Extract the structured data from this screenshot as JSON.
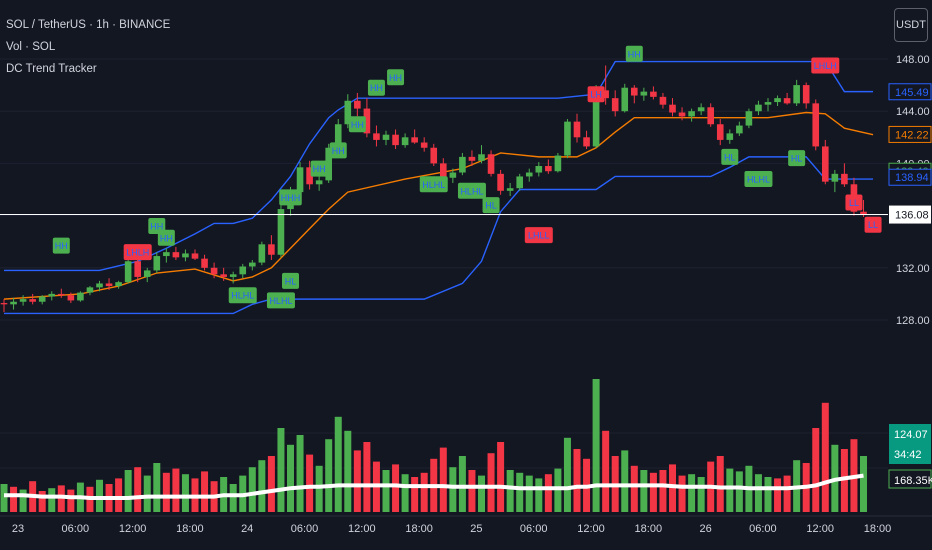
{
  "header": {
    "symbol_line": "SOL / TetherUS · 1h · BINANCE",
    "volume_line": "Vol · SOL",
    "indicator_line": "DC Trend Tracker",
    "currency_button": "USDT"
  },
  "colors": {
    "background": "#131722",
    "bull": "#4caf50",
    "bear": "#f23645",
    "upper_channel": "#2962ff",
    "lower_channel": "#2962ff",
    "middle_line": "#f57c00",
    "volume_ma": "#ffffff",
    "text": "#d1d4dc"
  },
  "chart_data": {
    "type": "candlestick",
    "symbol": "SOL / TetherUS",
    "interval": "1h",
    "exchange": "BINANCE",
    "price_axis_ticks": [
      148.0,
      144.0,
      140.0,
      136.0,
      132.0,
      128.0
    ],
    "time_axis_labels": [
      "23",
      "06:00",
      "12:00",
      "18:00",
      "24",
      "06:00",
      "12:00",
      "18:00",
      "25",
      "06:00",
      "12:00",
      "18:00",
      "26",
      "06:00",
      "12:00",
      "18:00"
    ],
    "price_labels": [
      {
        "name": "upper",
        "value": "145.49",
        "color": "#2962ff"
      },
      {
        "name": "middle",
        "value": "142.22",
        "color": "#f57c00"
      },
      {
        "name": "ma",
        "value": "139.40",
        "color": "#4caf50"
      },
      {
        "name": "lower",
        "value": "138.94",
        "color": "#2962ff"
      },
      {
        "name": "current",
        "value": "136.08",
        "color": "#ffffff"
      }
    ],
    "volume_labels": [
      {
        "value": "124.07",
        "color": "#089981"
      },
      {
        "value": "34:42",
        "color": "#089981"
      },
      {
        "value": "168.35K",
        "color": "#ffffff"
      }
    ],
    "current_price": 136.08,
    "channel_upper": [
      [
        0,
        131.8
      ],
      [
        10,
        131.8
      ],
      [
        14,
        132.5
      ],
      [
        17,
        133.5
      ],
      [
        20,
        134.6
      ],
      [
        22,
        135.4
      ],
      [
        24,
        135.4
      ],
      [
        26,
        135.8
      ],
      [
        28,
        137.2
      ],
      [
        30,
        139.0
      ],
      [
        32,
        141.5
      ],
      [
        34,
        143.5
      ],
      [
        35,
        144.1
      ],
      [
        37,
        145.0
      ],
      [
        44,
        145.0
      ],
      [
        50,
        145.0
      ],
      [
        58,
        145.0
      ],
      [
        62,
        145.3
      ],
      [
        64,
        147.8
      ],
      [
        86,
        147.8
      ],
      [
        88,
        145.5
      ],
      [
        91,
        145.5
      ]
    ],
    "channel_middle": [
      [
        0,
        129.6
      ],
      [
        8,
        130.0
      ],
      [
        12,
        130.6
      ],
      [
        16,
        131.6
      ],
      [
        20,
        131.9
      ],
      [
        24,
        131.0
      ],
      [
        26,
        131.3
      ],
      [
        28,
        132.0
      ],
      [
        30,
        133.5
      ],
      [
        32,
        135.0
      ],
      [
        34,
        136.5
      ],
      [
        36,
        137.8
      ],
      [
        42,
        138.8
      ],
      [
        48,
        139.6
      ],
      [
        52,
        140.8
      ],
      [
        56,
        140.5
      ],
      [
        60,
        140.5
      ],
      [
        62,
        141.2
      ],
      [
        64,
        142.4
      ],
      [
        66,
        143.5
      ],
      [
        80,
        143.5
      ],
      [
        84,
        143.9
      ],
      [
        86,
        143.8
      ],
      [
        88,
        142.7
      ],
      [
        91,
        142.2
      ]
    ],
    "channel_lower": [
      [
        0,
        128.5
      ],
      [
        14,
        128.5
      ],
      [
        24,
        128.5
      ],
      [
        26,
        129.2
      ],
      [
        28,
        129.6
      ],
      [
        30,
        129.6
      ],
      [
        44,
        129.6
      ],
      [
        48,
        130.8
      ],
      [
        50,
        132.5
      ],
      [
        52,
        136.3
      ],
      [
        54,
        138.0
      ],
      [
        56,
        138.0
      ],
      [
        62,
        138.0
      ],
      [
        64,
        139.0
      ],
      [
        70,
        139.0
      ],
      [
        74,
        139.0
      ],
      [
        76,
        139.7
      ],
      [
        78,
        140.5
      ],
      [
        84,
        140.5
      ],
      [
        86,
        138.8
      ],
      [
        91,
        138.8
      ]
    ],
    "candles": [
      [
        129.3,
        129.6,
        128.6,
        129.2
      ],
      [
        129.2,
        129.7,
        128.8,
        129.4
      ],
      [
        129.4,
        129.9,
        129.1,
        129.6
      ],
      [
        129.6,
        130.0,
        129.2,
        129.4
      ],
      [
        129.4,
        129.9,
        129.2,
        129.8
      ],
      [
        129.8,
        130.2,
        129.5,
        130.0
      ],
      [
        130.0,
        130.4,
        129.7,
        129.9
      ],
      [
        129.9,
        130.1,
        129.3,
        129.5
      ],
      [
        129.5,
        130.2,
        129.4,
        130.1
      ],
      [
        130.1,
        130.6,
        129.9,
        130.5
      ],
      [
        130.5,
        131.0,
        130.2,
        130.8
      ],
      [
        130.8,
        131.2,
        130.3,
        130.6
      ],
      [
        130.6,
        131.0,
        130.4,
        130.9
      ],
      [
        130.9,
        132.7,
        130.8,
        132.5
      ],
      [
        132.5,
        133.2,
        130.9,
        131.3
      ],
      [
        131.3,
        132.0,
        130.9,
        131.8
      ],
      [
        131.8,
        133.2,
        131.6,
        132.9
      ],
      [
        132.9,
        133.5,
        132.4,
        133.2
      ],
      [
        133.2,
        133.6,
        132.6,
        132.8
      ],
      [
        132.8,
        133.4,
        132.5,
        133.1
      ],
      [
        133.1,
        133.4,
        132.6,
        132.7
      ],
      [
        132.7,
        133.0,
        131.8,
        132.0
      ],
      [
        132.0,
        132.4,
        131.2,
        131.5
      ],
      [
        131.5,
        132.0,
        131.0,
        131.3
      ],
      [
        131.3,
        131.7,
        130.8,
        131.5
      ],
      [
        131.5,
        132.3,
        131.2,
        132.1
      ],
      [
        132.1,
        132.6,
        131.8,
        132.4
      ],
      [
        132.4,
        134.0,
        132.2,
        133.8
      ],
      [
        133.8,
        134.5,
        132.6,
        133.0
      ],
      [
        133.0,
        136.8,
        132.8,
        136.5
      ],
      [
        136.5,
        138.2,
        136.0,
        137.8
      ],
      [
        137.8,
        140.1,
        137.5,
        139.7
      ],
      [
        139.7,
        140.2,
        138.0,
        138.4
      ],
      [
        138.4,
        139.0,
        137.9,
        138.7
      ],
      [
        138.7,
        141.5,
        138.5,
        141.2
      ],
      [
        141.2,
        143.4,
        141.0,
        143.0
      ],
      [
        143.0,
        145.3,
        142.7,
        144.8
      ],
      [
        144.8,
        145.4,
        143.6,
        144.2
      ],
      [
        144.2,
        145.0,
        142.0,
        142.3
      ],
      [
        142.3,
        142.9,
        141.3,
        141.8
      ],
      [
        141.8,
        142.5,
        141.4,
        142.2
      ],
      [
        142.2,
        142.6,
        141.1,
        141.4
      ],
      [
        141.4,
        142.3,
        141.2,
        142.0
      ],
      [
        142.0,
        142.6,
        141.5,
        141.6
      ],
      [
        141.6,
        142.0,
        140.9,
        141.2
      ],
      [
        141.2,
        141.5,
        139.8,
        140.0
      ],
      [
        140.0,
        140.4,
        138.6,
        138.9
      ],
      [
        138.9,
        139.6,
        138.5,
        139.3
      ],
      [
        139.3,
        140.8,
        139.1,
        140.5
      ],
      [
        140.5,
        141.0,
        139.8,
        140.2
      ],
      [
        140.2,
        141.4,
        140.0,
        140.7
      ],
      [
        140.7,
        141.0,
        139.0,
        139.2
      ],
      [
        139.2,
        139.5,
        137.6,
        137.9
      ],
      [
        137.9,
        138.5,
        137.5,
        138.1
      ],
      [
        138.1,
        139.2,
        137.9,
        139.0
      ],
      [
        139.0,
        139.6,
        138.6,
        139.3
      ],
      [
        139.3,
        140.1,
        139.0,
        139.8
      ],
      [
        139.8,
        140.3,
        139.2,
        139.4
      ],
      [
        139.4,
        140.8,
        139.3,
        140.6
      ],
      [
        140.6,
        143.4,
        140.4,
        143.2
      ],
      [
        143.2,
        143.8,
        141.6,
        142.0
      ],
      [
        142.0,
        142.5,
        141.1,
        141.3
      ],
      [
        141.3,
        146.0,
        141.2,
        145.6
      ],
      [
        145.6,
        147.5,
        144.5,
        145.0
      ],
      [
        145.0,
        145.6,
        143.6,
        144.0
      ],
      [
        144.0,
        146.1,
        143.9,
        145.8
      ],
      [
        145.8,
        146.0,
        144.6,
        145.2
      ],
      [
        145.2,
        145.8,
        144.8,
        145.5
      ],
      [
        145.5,
        145.9,
        144.9,
        145.1
      ],
      [
        145.1,
        145.4,
        144.2,
        144.5
      ],
      [
        144.5,
        145.0,
        143.6,
        143.9
      ],
      [
        143.9,
        144.3,
        143.3,
        143.6
      ],
      [
        143.6,
        144.2,
        143.2,
        144.0
      ],
      [
        144.0,
        144.6,
        143.7,
        144.3
      ],
      [
        144.3,
        144.6,
        142.8,
        143.0
      ],
      [
        143.0,
        143.4,
        141.4,
        141.8
      ],
      [
        141.8,
        142.6,
        141.5,
        142.3
      ],
      [
        142.3,
        143.2,
        142.1,
        142.9
      ],
      [
        142.9,
        144.2,
        142.7,
        144.0
      ],
      [
        144.0,
        144.8,
        143.7,
        144.5
      ],
      [
        144.5,
        145.0,
        144.0,
        144.7
      ],
      [
        144.7,
        145.2,
        144.4,
        145.0
      ],
      [
        145.0,
        145.4,
        144.5,
        144.6
      ],
      [
        144.6,
        146.4,
        144.4,
        146.0
      ],
      [
        146.0,
        146.2,
        144.2,
        144.6
      ],
      [
        144.6,
        144.9,
        141.0,
        141.3
      ],
      [
        141.3,
        141.8,
        138.4,
        138.6
      ],
      [
        138.6,
        139.5,
        137.8,
        139.2
      ],
      [
        139.2,
        140.0,
        138.2,
        138.4
      ],
      [
        138.4,
        138.9,
        136.0,
        136.3
      ],
      [
        136.3,
        137.2,
        135.9,
        136.1
      ]
    ],
    "volumes": [
      [
        0.2,
        0
      ],
      [
        0.18,
        1
      ],
      [
        0.16,
        0
      ],
      [
        0.22,
        1
      ],
      [
        0.15,
        1
      ],
      [
        0.17,
        0
      ],
      [
        0.19,
        1
      ],
      [
        0.16,
        1
      ],
      [
        0.21,
        0
      ],
      [
        0.18,
        1
      ],
      [
        0.23,
        0
      ],
      [
        0.2,
        1
      ],
      [
        0.24,
        1
      ],
      [
        0.3,
        0
      ],
      [
        0.32,
        1
      ],
      [
        0.26,
        0
      ],
      [
        0.35,
        0
      ],
      [
        0.28,
        1
      ],
      [
        0.31,
        1
      ],
      [
        0.27,
        0
      ],
      [
        0.24,
        1
      ],
      [
        0.29,
        1
      ],
      [
        0.22,
        1
      ],
      [
        0.25,
        0
      ],
      [
        0.2,
        0
      ],
      [
        0.26,
        0
      ],
      [
        0.32,
        0
      ],
      [
        0.37,
        0
      ],
      [
        0.4,
        1
      ],
      [
        0.6,
        0
      ],
      [
        0.48,
        0
      ],
      [
        0.55,
        0
      ],
      [
        0.41,
        1
      ],
      [
        0.33,
        0
      ],
      [
        0.52,
        0
      ],
      [
        0.68,
        0
      ],
      [
        0.58,
        0
      ],
      [
        0.44,
        1
      ],
      [
        0.5,
        1
      ],
      [
        0.36,
        1
      ],
      [
        0.3,
        0
      ],
      [
        0.34,
        1
      ],
      [
        0.27,
        0
      ],
      [
        0.25,
        1
      ],
      [
        0.28,
        1
      ],
      [
        0.38,
        1
      ],
      [
        0.46,
        1
      ],
      [
        0.32,
        0
      ],
      [
        0.4,
        0
      ],
      [
        0.3,
        1
      ],
      [
        0.26,
        0
      ],
      [
        0.42,
        1
      ],
      [
        0.5,
        1
      ],
      [
        0.3,
        0
      ],
      [
        0.28,
        0
      ],
      [
        0.26,
        0
      ],
      [
        0.24,
        0
      ],
      [
        0.27,
        1
      ],
      [
        0.31,
        0
      ],
      [
        0.53,
        0
      ],
      [
        0.45,
        1
      ],
      [
        0.38,
        1
      ],
      [
        0.95,
        0
      ],
      [
        0.58,
        1
      ],
      [
        0.4,
        1
      ],
      [
        0.44,
        0
      ],
      [
        0.33,
        1
      ],
      [
        0.3,
        0
      ],
      [
        0.28,
        1
      ],
      [
        0.3,
        1
      ],
      [
        0.34,
        1
      ],
      [
        0.26,
        1
      ],
      [
        0.27,
        0
      ],
      [
        0.25,
        0
      ],
      [
        0.36,
        1
      ],
      [
        0.4,
        1
      ],
      [
        0.31,
        0
      ],
      [
        0.29,
        0
      ],
      [
        0.33,
        0
      ],
      [
        0.27,
        0
      ],
      [
        0.25,
        0
      ],
      [
        0.24,
        1
      ],
      [
        0.26,
        1
      ],
      [
        0.37,
        0
      ],
      [
        0.35,
        1
      ],
      [
        0.6,
        1
      ],
      [
        0.78,
        1
      ],
      [
        0.48,
        0
      ],
      [
        0.45,
        1
      ],
      [
        0.52,
        1
      ],
      [
        0.4,
        0
      ]
    ],
    "volume_ma": [
      0.12,
      0.12,
      0.12,
      0.115,
      0.11,
      0.11,
      0.11,
      0.105,
      0.105,
      0.1,
      0.1,
      0.1,
      0.1,
      0.1,
      0.105,
      0.11,
      0.11,
      0.11,
      0.11,
      0.11,
      0.11,
      0.11,
      0.11,
      0.12,
      0.12,
      0.12,
      0.13,
      0.14,
      0.15,
      0.16,
      0.17,
      0.175,
      0.18,
      0.18,
      0.185,
      0.19,
      0.19,
      0.19,
      0.19,
      0.19,
      0.19,
      0.19,
      0.185,
      0.185,
      0.185,
      0.185,
      0.185,
      0.18,
      0.18,
      0.18,
      0.18,
      0.18,
      0.18,
      0.175,
      0.17,
      0.17,
      0.17,
      0.17,
      0.17,
      0.17,
      0.18,
      0.18,
      0.19,
      0.19,
      0.19,
      0.19,
      0.19,
      0.19,
      0.19,
      0.19,
      0.185,
      0.18,
      0.18,
      0.18,
      0.18,
      0.175,
      0.175,
      0.175,
      0.17,
      0.17,
      0.17,
      0.17,
      0.17,
      0.175,
      0.18,
      0.19,
      0.21,
      0.23,
      0.24,
      0.25,
      0.26
    ],
    "markers": [
      {
        "label": "HH",
        "i": 6,
        "side": "above",
        "color": "bull",
        "p": 133.7
      },
      {
        "label": "HH",
        "i": 17,
        "side": "above",
        "color": "bull",
        "p": 134.3
      },
      {
        "label": "HH",
        "i": 16,
        "side": "above",
        "color": "bull",
        "p": 135.2
      },
      {
        "label": "LHLH",
        "i": 14,
        "side": "above",
        "color": "bear",
        "p": 133.2
      },
      {
        "label": "HLHL",
        "i": 25,
        "side": "below",
        "color": "bull",
        "p": 129.9
      },
      {
        "label": "HLHL",
        "i": 29,
        "side": "below",
        "color": "bull",
        "p": 129.5
      },
      {
        "label": "HL",
        "i": 30,
        "side": "below",
        "color": "bull",
        "p": 131.0
      },
      {
        "label": "HHH",
        "i": 30,
        "side": "above",
        "color": "bull",
        "p": 137.4
      },
      {
        "label": "HH",
        "i": 33,
        "side": "above",
        "color": "bull",
        "p": 139.6
      },
      {
        "label": "HH",
        "i": 35,
        "side": "above",
        "color": "bull",
        "p": 141.0
      },
      {
        "label": "HH",
        "i": 37,
        "side": "above",
        "color": "bull",
        "p": 143.0
      },
      {
        "label": "HH",
        "i": 39,
        "side": "above",
        "color": "bull",
        "p": 145.8
      },
      {
        "label": "HH",
        "i": 41,
        "side": "above",
        "color": "bull",
        "p": 146.6
      },
      {
        "label": "HLHL",
        "i": 45,
        "side": "below",
        "color": "bull",
        "p": 138.4
      },
      {
        "label": "HLHL",
        "i": 49,
        "side": "below",
        "color": "bull",
        "p": 137.9
      },
      {
        "label": "HL",
        "i": 51,
        "side": "below",
        "color": "bull",
        "p": 136.8
      },
      {
        "label": "LHLL",
        "i": 56,
        "side": "below",
        "color": "bear",
        "p": 134.5
      },
      {
        "label": "LH",
        "i": 62,
        "side": "above",
        "color": "bear",
        "p": 145.3
      },
      {
        "label": "HH",
        "i": 66,
        "side": "above",
        "color": "bull",
        "p": 148.4
      },
      {
        "label": "HL",
        "i": 76,
        "side": "below",
        "color": "bull",
        "p": 140.5
      },
      {
        "label": "HLHL",
        "i": 79,
        "side": "below",
        "color": "bull",
        "p": 138.8
      },
      {
        "label": "HL",
        "i": 83,
        "side": "below",
        "color": "bull",
        "p": 140.4
      },
      {
        "label": "LHLH",
        "i": 86,
        "side": "above",
        "color": "bear",
        "p": 147.5
      },
      {
        "label": "LL",
        "i": 89,
        "side": "below",
        "color": "bear",
        "p": 137.0
      },
      {
        "label": "LL",
        "i": 91,
        "side": "below",
        "color": "bear",
        "p": 135.3
      }
    ]
  }
}
